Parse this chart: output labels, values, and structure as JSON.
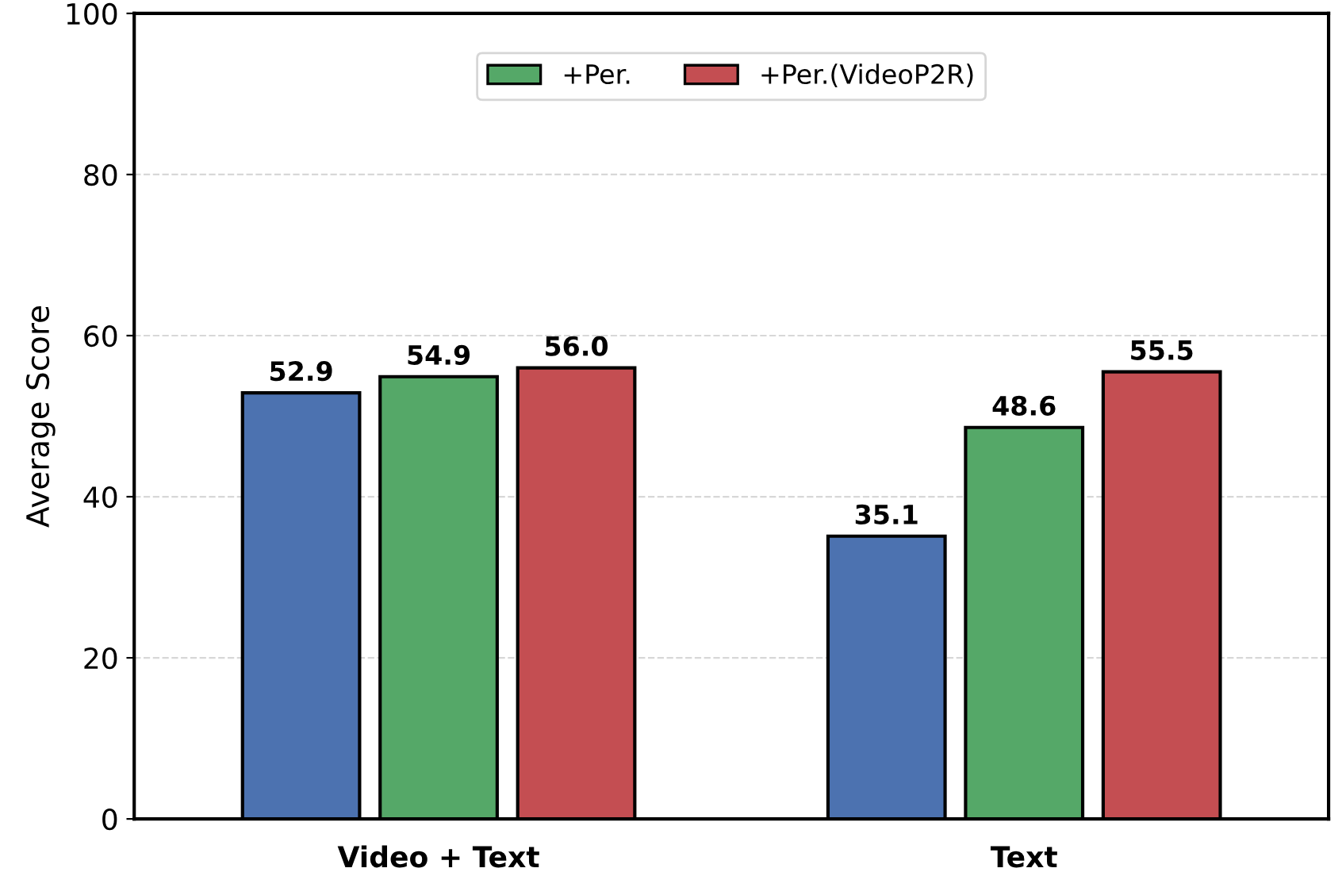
{
  "chart_data": {
    "type": "bar",
    "ylabel": "Average Score",
    "categories": [
      "Video + Text",
      "Text"
    ],
    "series": [
      {
        "color": "#4c72b0",
        "values": [
          52.9,
          35.1
        ],
        "value_labels": [
          "52.9",
          "35.1"
        ]
      },
      {
        "name": "+Per.",
        "color": "#55a868",
        "values": [
          54.9,
          48.6
        ],
        "value_labels": [
          "54.9",
          "48.6"
        ]
      },
      {
        "name": "+Per.(VideoP2R)",
        "color": "#c44e52",
        "values": [
          56.0,
          55.5
        ],
        "value_labels": [
          "56.0",
          "55.5"
        ]
      }
    ],
    "ylim": [
      0,
      100
    ],
    "yticks": [
      0,
      20,
      40,
      60,
      80,
      100
    ],
    "grid": "y",
    "legend": "top"
  }
}
